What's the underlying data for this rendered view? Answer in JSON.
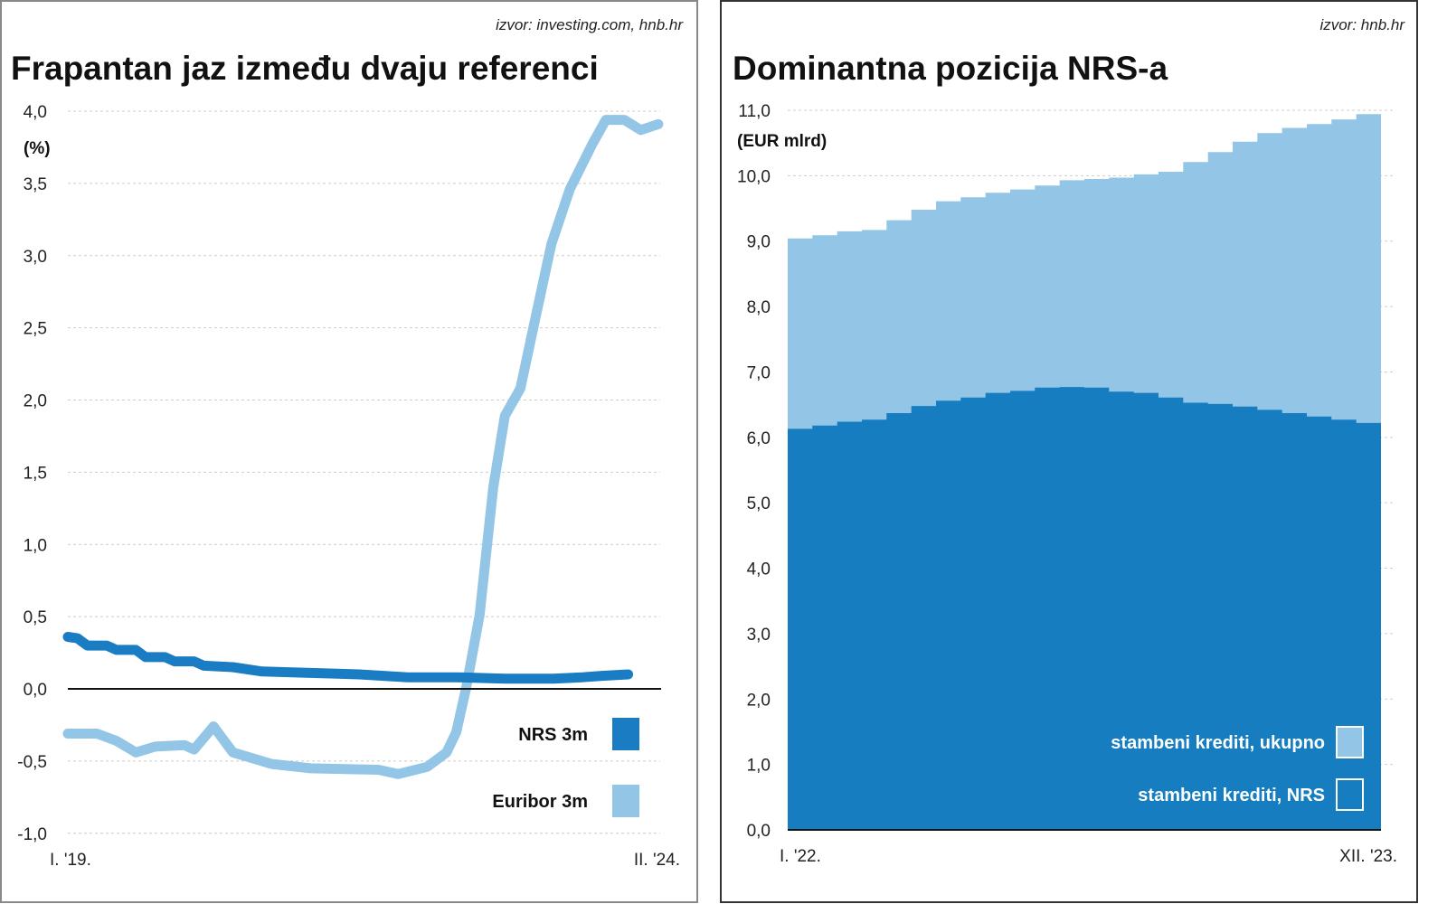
{
  "chart_data": [
    {
      "type": "line",
      "title": "Frapantan jaz između dvaju referenci",
      "source": "izvor: investing.com, hnb.hr",
      "ylabel": "(%)",
      "ylim": [
        -1.0,
        4.0
      ],
      "yticks": [
        "4,0",
        "3,5",
        "3,0",
        "2,5",
        "2,0",
        "1,5",
        "1,0",
        "0,5",
        "0,0",
        "-0,5",
        "-1,0"
      ],
      "ytick_values": [
        4.0,
        3.5,
        3.0,
        2.5,
        2.0,
        1.5,
        1.0,
        0.5,
        0.0,
        -0.5,
        -1.0
      ],
      "x_unit": "months since Jan 2019",
      "xlim": [
        0,
        61
      ],
      "xticks": [
        {
          "x": 0,
          "label": "I. '19."
        },
        {
          "x": 61,
          "label": "II. '24."
        }
      ],
      "grid": true,
      "legend_placement": "bottom-right",
      "series": [
        {
          "name": "NRS 3m",
          "color": "#1a7cc2",
          "points": [
            [
              0,
              0.36
            ],
            [
              1,
              0.35
            ],
            [
              2,
              0.3
            ],
            [
              4,
              0.3
            ],
            [
              5,
              0.27
            ],
            [
              7,
              0.27
            ],
            [
              8,
              0.22
            ],
            [
              10,
              0.22
            ],
            [
              11,
              0.19
            ],
            [
              13,
              0.19
            ],
            [
              14,
              0.16
            ],
            [
              17,
              0.15
            ],
            [
              20,
              0.12
            ],
            [
              25,
              0.11
            ],
            [
              30,
              0.1
            ],
            [
              35,
              0.08
            ],
            [
              40,
              0.08
            ],
            [
              45,
              0.07
            ],
            [
              50,
              0.07
            ],
            [
              53,
              0.08
            ],
            [
              55,
              0.09
            ],
            [
              57.7,
              0.1
            ]
          ]
        },
        {
          "name": "Euribor 3m",
          "color": "#92c5e6",
          "points": [
            [
              0,
              -0.31
            ],
            [
              3,
              -0.31
            ],
            [
              5,
              -0.36
            ],
            [
              7,
              -0.44
            ],
            [
              9,
              -0.4
            ],
            [
              12,
              -0.39
            ],
            [
              13,
              -0.42
            ],
            [
              15,
              -0.26
            ],
            [
              17,
              -0.44
            ],
            [
              21,
              -0.52
            ],
            [
              25,
              -0.55
            ],
            [
              32,
              -0.56
            ],
            [
              34,
              -0.59
            ],
            [
              37,
              -0.54
            ],
            [
              39,
              -0.44
            ],
            [
              40,
              -0.3
            ],
            [
              41,
              0.0
            ],
            [
              42.4,
              0.51
            ],
            [
              43.8,
              1.39
            ],
            [
              45,
              1.89
            ],
            [
              46.6,
              2.08
            ],
            [
              48,
              2.52
            ],
            [
              49.8,
              3.08
            ],
            [
              51.7,
              3.46
            ],
            [
              54,
              3.77
            ],
            [
              55.4,
              3.94
            ],
            [
              57.3,
              3.94
            ],
            [
              59,
              3.87
            ],
            [
              60.8,
              3.91
            ]
          ]
        }
      ]
    },
    {
      "type": "area",
      "title": "Dominantna pozicija NRS-a",
      "source": "izvor: hnb.hr",
      "ylabel": "(EUR mlrd)",
      "ylim": [
        0,
        11.0
      ],
      "yticks": [
        "11,0",
        "10,0",
        "9,0",
        "8,0",
        "7,0",
        "6,0",
        "5,0",
        "4,0",
        "3,0",
        "2,0",
        "1,0",
        "0,0"
      ],
      "ytick_values": [
        11,
        10,
        9,
        8,
        7,
        6,
        5,
        4,
        3,
        2,
        1,
        0
      ],
      "categories_count": 24,
      "xticks": [
        {
          "x": 0,
          "label": "I. '22."
        },
        {
          "x": 23,
          "label": "XII. '23."
        }
      ],
      "grid": true,
      "legend_placement": "bottom-right",
      "series": [
        {
          "name": "stambeni krediti, ukupno",
          "color": "#92c5e6",
          "values": [
            9.04,
            9.09,
            9.15,
            9.17,
            9.32,
            9.48,
            9.61,
            9.67,
            9.74,
            9.79,
            9.85,
            9.93,
            9.95,
            9.97,
            10.02,
            10.06,
            10.21,
            10.36,
            10.52,
            10.65,
            10.73,
            10.79,
            10.86,
            10.94
          ]
        },
        {
          "name": "stambeni krediti, NRS",
          "color": "#167dc1",
          "values": [
            6.13,
            6.18,
            6.24,
            6.27,
            6.37,
            6.48,
            6.56,
            6.61,
            6.68,
            6.71,
            6.76,
            6.77,
            6.76,
            6.7,
            6.68,
            6.61,
            6.53,
            6.51,
            6.47,
            6.42,
            6.37,
            6.32,
            6.27,
            6.22
          ]
        }
      ]
    }
  ]
}
